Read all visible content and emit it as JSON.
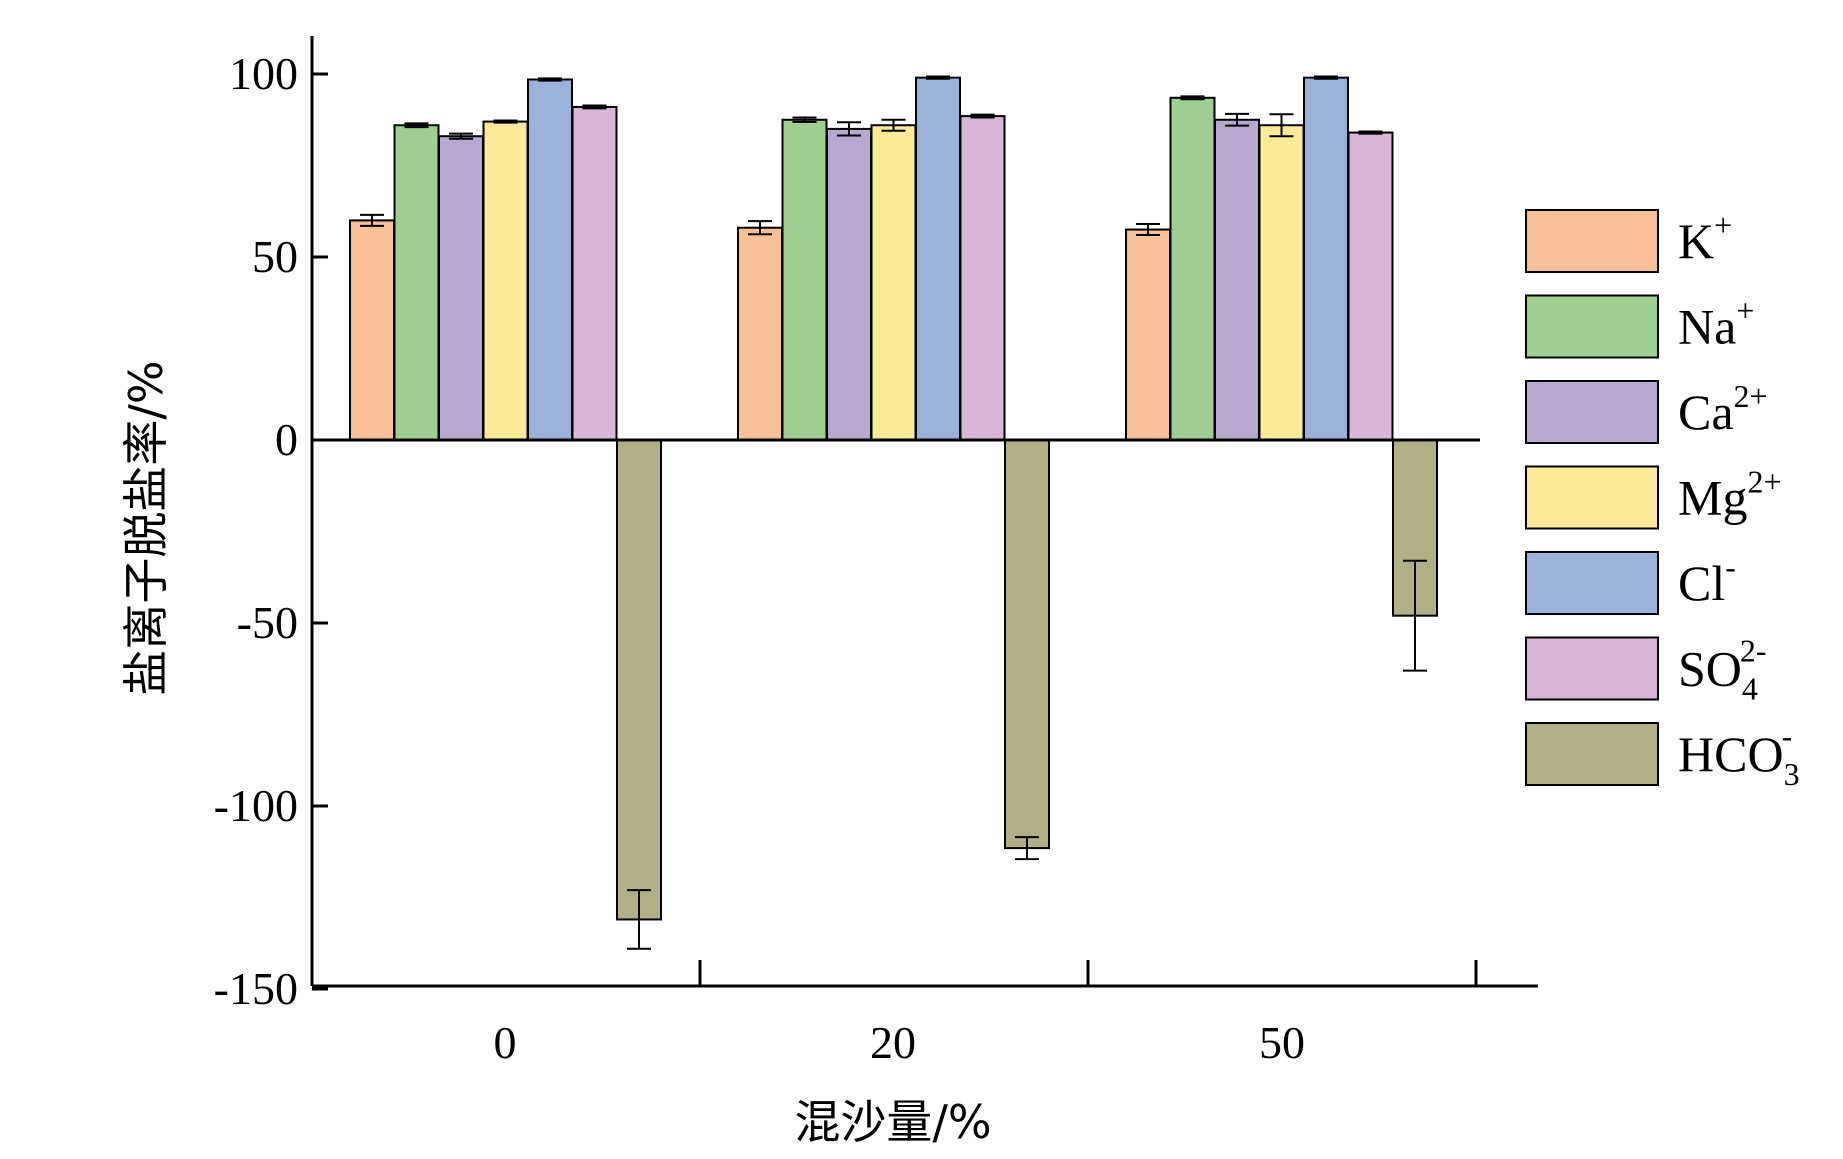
{
  "chart_data": {
    "type": "bar",
    "xlabel": "混沙量/%",
    "ylabel": "盐离子脱盐率/%",
    "categories": [
      "0",
      "20",
      "50"
    ],
    "ylim": [
      -150,
      100
    ],
    "yticks": [
      "100",
      "50",
      "0",
      "-50",
      "-100",
      "-150"
    ],
    "series": [
      {
        "name": "K⁺",
        "label_base": "K",
        "sup": "+",
        "sub": "",
        "color": "#F8C096",
        "values": [
          60,
          58,
          57.5
        ],
        "errors": [
          1.5,
          1.8,
          1.5
        ]
      },
      {
        "name": "Na⁺",
        "label_base": "Na",
        "sup": "+",
        "sub": "",
        "color": "#9ECF90",
        "values": [
          86,
          87.5,
          93.5
        ],
        "errors": [
          0.5,
          0.6,
          0.4
        ]
      },
      {
        "name": "Ca²⁺",
        "label_base": "Ca",
        "sup": "2+",
        "sub": "",
        "color": "#B6A8CE",
        "values": [
          83,
          85,
          87.5
        ],
        "errors": [
          0.7,
          1.8,
          1.6
        ]
      },
      {
        "name": "Mg²⁺",
        "label_base": "Mg",
        "sup": "2+",
        "sub": "",
        "color": "#FBEB99",
        "values": [
          87,
          86,
          86
        ],
        "errors": [
          0.3,
          1.5,
          3.0
        ]
      },
      {
        "name": "Cl⁻",
        "label_base": "Cl",
        "sup": "-",
        "sub": "",
        "color": "#9CB1D9",
        "values": [
          98.5,
          99,
          99
        ],
        "errors": [
          0.3,
          0.3,
          0.3
        ]
      },
      {
        "name": "SO₄²⁻",
        "label_base": "SO",
        "sup": "2-",
        "sub": "4",
        "color": "#D8B6D6",
        "values": [
          91,
          88.5,
          84
        ],
        "errors": [
          0.4,
          0.4,
          0.3
        ]
      },
      {
        "name": "HCO₃⁻",
        "label_base": "HCO",
        "sup": "-",
        "sub": "3",
        "color": "#B0AF86",
        "values": [
          -131,
          -111.5,
          -48
        ],
        "errors": [
          8,
          3,
          15
        ]
      }
    ]
  }
}
